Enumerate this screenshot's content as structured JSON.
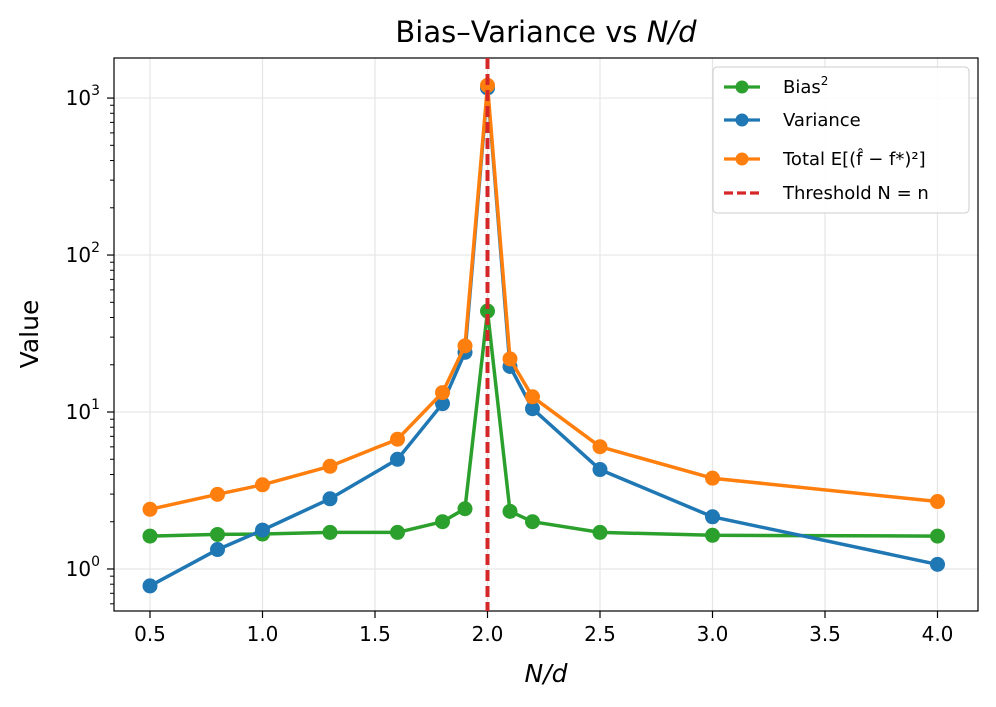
{
  "chart_data": {
    "type": "line",
    "title": "Bias–Variance vs N/d",
    "title_parts": {
      "prefix": "Bias–Variance vs ",
      "math": "N/d"
    },
    "xlabel": "N/d",
    "ylabel": "Value",
    "y_scale": "log",
    "xlim": [
      0.34,
      4.18
    ],
    "ylim": [
      0.54,
      1800
    ],
    "x_ticks": [
      0.5,
      1.0,
      1.5,
      2.0,
      2.5,
      3.0,
      3.5,
      4.0
    ],
    "x_tick_labels": [
      "0.5",
      "1.0",
      "1.5",
      "2.0",
      "2.5",
      "3.0",
      "3.5",
      "4.0"
    ],
    "y_ticks": [
      1,
      10,
      100,
      1000
    ],
    "y_tick_labels": [
      {
        "base": "10",
        "exp": "0"
      },
      {
        "base": "10",
        "exp": "1"
      },
      {
        "base": "10",
        "exp": "2"
      },
      {
        "base": "10",
        "exp": "3"
      }
    ],
    "grid": true,
    "legend_position": "top-right",
    "x": [
      0.5,
      0.8,
      1.0,
      1.3,
      1.6,
      1.8,
      1.9,
      2.0,
      2.1,
      2.2,
      2.5,
      3.0,
      4.0
    ],
    "series": [
      {
        "name": "Bias²",
        "color": "#2ca02c",
        "values": [
          1.62,
          1.66,
          1.67,
          1.71,
          1.71,
          2.0,
          2.42,
          44.0,
          2.33,
          2.0,
          1.71,
          1.64,
          1.62
        ]
      },
      {
        "name": "Variance",
        "color": "#1f77b4",
        "values": [
          0.78,
          1.33,
          1.77,
          2.8,
          5.0,
          11.3,
          24.0,
          1160,
          19.5,
          10.5,
          4.3,
          2.15,
          1.07
        ]
      },
      {
        "name": "Total E[(f̂ − f*)²]",
        "color": "#ff7f0e",
        "values": [
          2.4,
          2.99,
          3.44,
          4.51,
          6.71,
          13.3,
          26.4,
          1204,
          21.8,
          12.5,
          6.01,
          3.79,
          2.69
        ]
      }
    ],
    "threshold": {
      "x": 2.0,
      "label": "Threshold N = n",
      "color": "#d62728"
    },
    "legend": [
      {
        "label": "Bias",
        "sup": "2"
      },
      {
        "label": "Variance"
      },
      {
        "label": "Total E[(f̂ − f*)²]"
      },
      {
        "label": "Threshold N = n"
      }
    ]
  }
}
